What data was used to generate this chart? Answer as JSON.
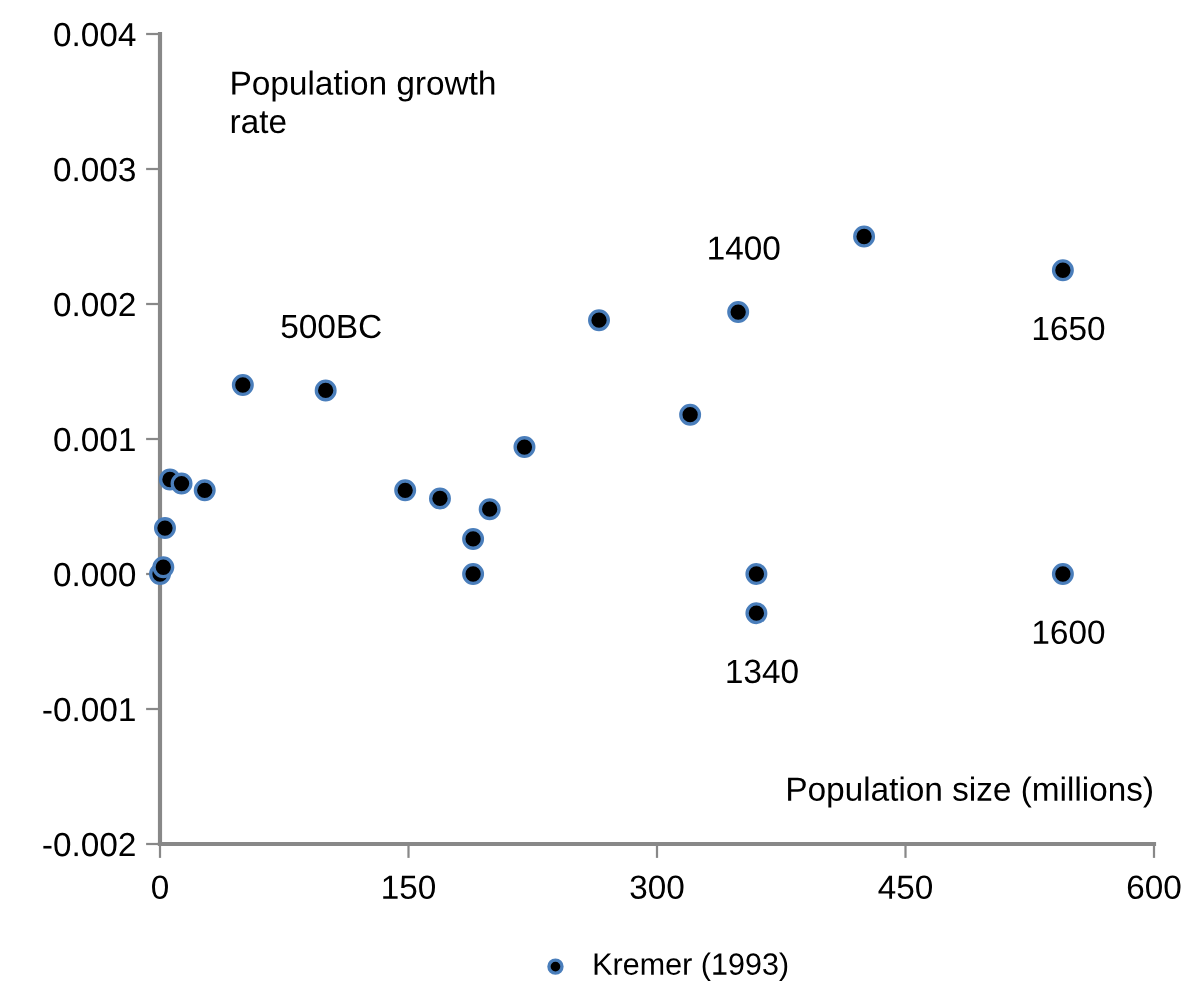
{
  "chart_data": {
    "type": "scatter",
    "xlabel": "Population size (millions)",
    "ylabel": "Population growth rate",
    "series": [
      {
        "name": "Kremer (1993)",
        "color": "#000000",
        "x": [
          0,
          2,
          3,
          6,
          13,
          27,
          50,
          100,
          148,
          169,
          189,
          189,
          199,
          220,
          265,
          320,
          349,
          360,
          360,
          425,
          545,
          545
        ],
        "values": [
          0,
          5e-05,
          0.00034,
          0.0007,
          0.00067,
          0.00062,
          0.0014,
          0.00136,
          0.00062,
          0.00056,
          0.00026,
          0,
          0.00048,
          0.00094,
          0.00188,
          0.00118,
          0.00194,
          0,
          -0.00029,
          0.0025,
          0.00225,
          0
        ]
      }
    ],
    "annotations": [
      {
        "text": "500BC",
        "x": 100,
        "y": 0.00136
      },
      {
        "text": "1400",
        "x": 349,
        "y": 0.00194
      },
      {
        "text": "1650",
        "x": 545,
        "y": 0.00225
      },
      {
        "text": "1340",
        "x": 360,
        "y": -0.00029
      },
      {
        "text": "1600",
        "x": 545,
        "y": 0
      }
    ],
    "xlim": [
      0,
      600
    ],
    "xticks": [
      0,
      150,
      300,
      450,
      600
    ],
    "ylim": [
      -0.002,
      0.004
    ],
    "yticks": [
      {
        "value": -0.002,
        "label": "-0.002"
      },
      {
        "value": -0.001,
        "label": "-0.001"
      },
      {
        "value": 0,
        "label": "0.000"
      },
      {
        "value": 0.001,
        "label": "0.001"
      },
      {
        "value": 0.002,
        "label": "0.002"
      },
      {
        "value": 0.003,
        "label": "0.003"
      },
      {
        "value": 0.004,
        "label": "0.004"
      }
    ],
    "grid": false,
    "legend": "bottom",
    "marker": "circle"
  }
}
